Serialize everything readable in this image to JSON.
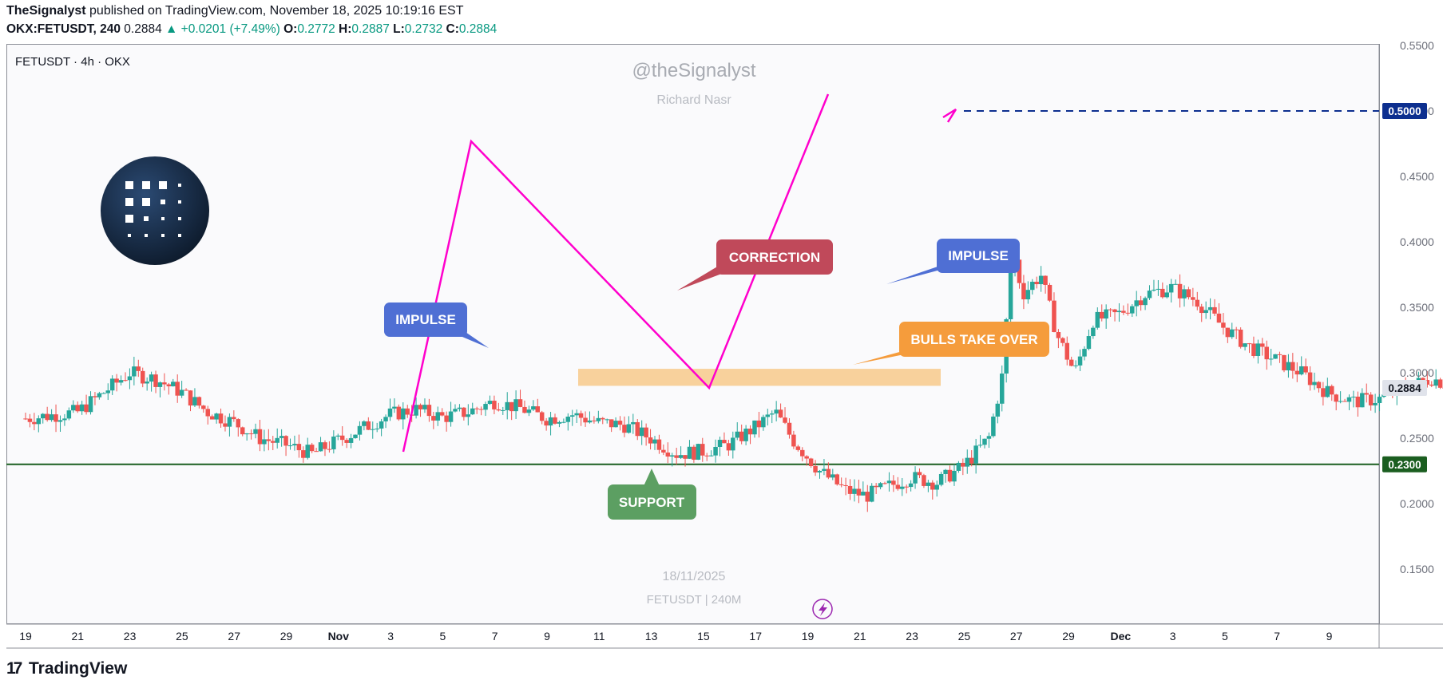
{
  "header": {
    "publisher": "TheSignalyst",
    "published_text": "published on TradingView.com, November 18, 2025 10:19:16 EST",
    "symbol": "OKX:FETUSDT, 240",
    "last": "0.2884",
    "change": "▲ +0.0201 (+7.49%)",
    "o_label": "O:",
    "o": "0.2772",
    "h_label": "H:",
    "h": "0.2887",
    "l_label": "L:",
    "l": "0.2732",
    "c_label": "C:",
    "c": "0.2884"
  },
  "chart_title": "FETUSDT · 4h · OKX",
  "watermark": {
    "handle": "@theSignalyst",
    "name": "Richard Nasr",
    "date": "18/11/2025",
    "symbol": "FETUSDT | 240M"
  },
  "footer": {
    "brand": "TradingView"
  },
  "colors": {
    "up": "#26a69a",
    "down": "#ef5350",
    "pattern": "#ff00cc",
    "support": "#1b5e20",
    "target": "#0d2f8f",
    "zone": "#f7c98b"
  },
  "chart_data": {
    "type": "candlestick",
    "ylim": [
      0.1,
      0.53
    ],
    "y_ticks": [
      "0.5500",
      "0.5000",
      "0.4500",
      "0.4000",
      "0.3500",
      "0.3000",
      "0.2500",
      "0.2000",
      "0.1500"
    ],
    "x_ticks": [
      "19",
      "21",
      "23",
      "25",
      "27",
      "29",
      "Nov",
      "3",
      "5",
      "7",
      "9",
      "11",
      "13",
      "15",
      "17",
      "19",
      "21",
      "23",
      "25",
      "27",
      "29",
      "Dec",
      "3",
      "5",
      "7",
      "9"
    ],
    "price_badges": {
      "current": "0.2884",
      "support": "0.2300",
      "target": "0.5000"
    },
    "support_level": 0.23,
    "target_level": 0.5,
    "resistance_zone": [
      0.29,
      0.303
    ],
    "close_path": [
      [
        0,
        0.265
      ],
      [
        2,
        0.27
      ],
      [
        3,
        0.285
      ],
      [
        4,
        0.3
      ],
      [
        5,
        0.295
      ],
      [
        6,
        0.285
      ],
      [
        7,
        0.27
      ],
      [
        8,
        0.262
      ],
      [
        9,
        0.25
      ],
      [
        10,
        0.245
      ],
      [
        11,
        0.238
      ],
      [
        12,
        0.248
      ],
      [
        13,
        0.258
      ],
      [
        14,
        0.268
      ],
      [
        15,
        0.272
      ],
      [
        16,
        0.266
      ],
      [
        17,
        0.27
      ],
      [
        18,
        0.278
      ],
      [
        19,
        0.273
      ],
      [
        20,
        0.265
      ],
      [
        21,
        0.268
      ],
      [
        22,
        0.262
      ],
      [
        23,
        0.26
      ],
      [
        24,
        0.25
      ],
      [
        25,
        0.238
      ],
      [
        26,
        0.24
      ],
      [
        27,
        0.245
      ],
      [
        28,
        0.258
      ],
      [
        28.8,
        0.27
      ],
      [
        29.5,
        0.248
      ],
      [
        30.5,
        0.225
      ],
      [
        31.5,
        0.21
      ],
      [
        32.3,
        0.206
      ],
      [
        33,
        0.212
      ],
      [
        34,
        0.22
      ],
      [
        35,
        0.216
      ],
      [
        36,
        0.228
      ],
      [
        37,
        0.25
      ],
      [
        37.5,
        0.295
      ],
      [
        37.9,
        0.395
      ],
      [
        38.3,
        0.36
      ],
      [
        39,
        0.375
      ],
      [
        39.6,
        0.33
      ],
      [
        40.3,
        0.3
      ],
      [
        41,
        0.34
      ],
      [
        42,
        0.345
      ],
      [
        43,
        0.36
      ],
      [
        44,
        0.365
      ],
      [
        45,
        0.355
      ],
      [
        46,
        0.335
      ],
      [
        47,
        0.32
      ],
      [
        48,
        0.31
      ],
      [
        49,
        0.3
      ],
      [
        50,
        0.285
      ],
      [
        51,
        0.278
      ],
      [
        52,
        0.28
      ],
      [
        53,
        0.288
      ],
      [
        54,
        0.296
      ],
      [
        55,
        0.288
      ],
      [
        56,
        0.275
      ],
      [
        57,
        0.273
      ],
      [
        58,
        0.28
      ],
      [
        59,
        0.276
      ],
      [
        60,
        0.2884
      ]
    ],
    "pattern_path": [
      [
        505,
        566
      ],
      [
        590,
        177
      ],
      [
        888,
        486
      ],
      [
        1037,
        118
      ]
    ],
    "annotations": [
      {
        "label": "IMPULSE",
        "color": "#4f6fd4"
      },
      {
        "label": "CORRECTION",
        "color": "#c0495a"
      },
      {
        "label": "IMPULSE",
        "color": "#4f6fd4"
      },
      {
        "label": "BULLS TAKE OVER",
        "color": "#f59c3c"
      },
      {
        "label": "SUPPORT",
        "color": "#5c9f62"
      }
    ]
  }
}
